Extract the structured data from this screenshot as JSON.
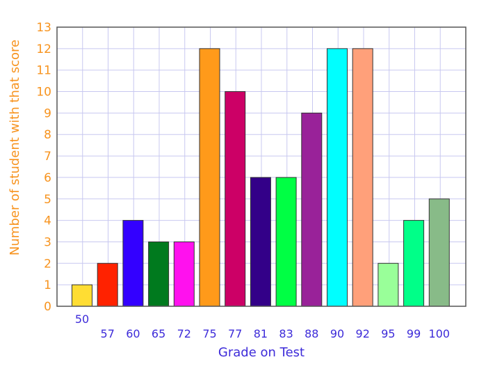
{
  "chart_data": {
    "type": "bar",
    "categories": [
      "50",
      "57",
      "60",
      "65",
      "72",
      "75",
      "77",
      "81",
      "83",
      "88",
      "90",
      "92",
      "95",
      "99",
      "100"
    ],
    "values": [
      1,
      2,
      4,
      3,
      3,
      12,
      10,
      6,
      6,
      9,
      12,
      12,
      2,
      4,
      5
    ],
    "colors": [
      "#ffdd33",
      "#ff2200",
      "#3300ff",
      "#007a1e",
      "#ff11ee",
      "#ff9a1a",
      "#cc0066",
      "#330088",
      "#00ff44",
      "#992299",
      "#00ffff",
      "#ffa07a",
      "#99ff99",
      "#00ff88",
      "#88bb88"
    ],
    "title": "",
    "xlabel": "Grade on Test",
    "ylabel": "Number of student with that score",
    "ylim": [
      0,
      13
    ],
    "yticks": [
      "0",
      "1",
      "2",
      "3",
      "4",
      "5",
      "6",
      "7",
      "8",
      "9",
      "10",
      "11",
      "12",
      "13"
    ],
    "grid": true,
    "axis_colors": {
      "y": "#f7931e",
      "x": "#3d2bd9",
      "grid": "#c8c8f0",
      "frame": "#555555"
    }
  }
}
